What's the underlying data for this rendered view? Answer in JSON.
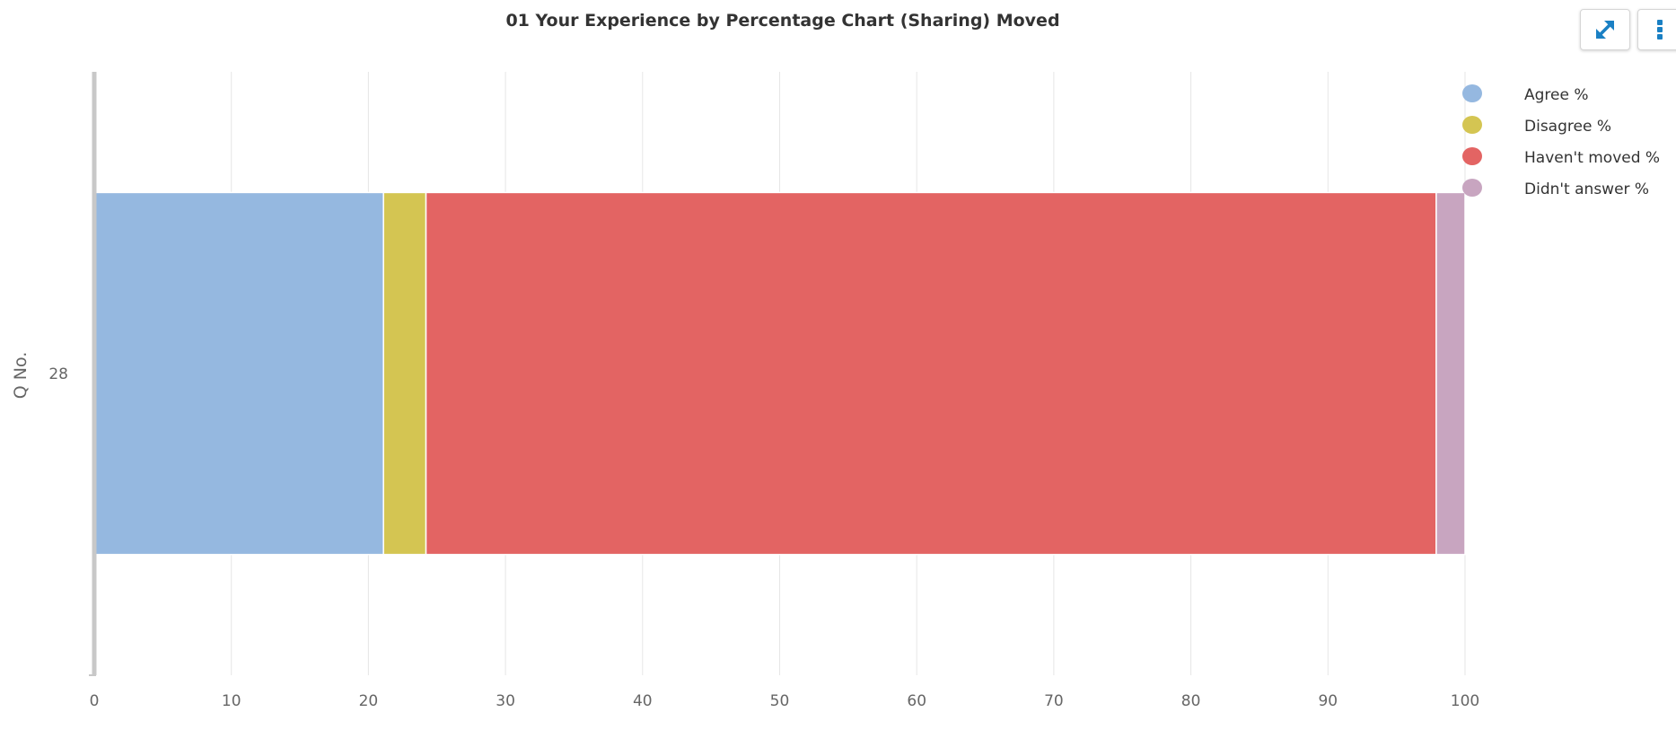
{
  "chart_data": {
    "type": "bar",
    "orientation": "horizontal",
    "stacked": true,
    "title": "01 Your Experience by Percentage Chart (Sharing) Moved",
    "ylabel": "Q No.",
    "xlabel": "",
    "categories": [
      "28"
    ],
    "xlim": [
      0,
      100
    ],
    "x_ticks": [
      "0",
      "10",
      "20",
      "30",
      "40",
      "50",
      "60",
      "70",
      "80",
      "90",
      "100"
    ],
    "grid": true,
    "legend_position": "top-right",
    "series": [
      {
        "name": "Agree %",
        "values": [
          21.1
        ],
        "color": "#95b8e0"
      },
      {
        "name": "Disagree %",
        "values": [
          3.1
        ],
        "color": "#d4c552"
      },
      {
        "name": "Haven't moved %",
        "values": [
          73.7
        ],
        "color": "#e36463"
      },
      {
        "name": "Didn't answer %",
        "values": [
          2.1
        ],
        "color": "#c8a5c0"
      }
    ]
  },
  "toolbar": {
    "expand_icon": "expand-arrows-icon",
    "menu_icon": "vertical-dots-icon",
    "accent_color": "#1a80c4"
  }
}
